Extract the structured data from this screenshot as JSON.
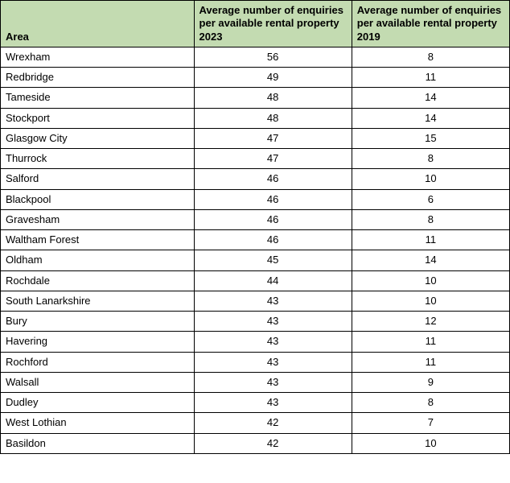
{
  "table": {
    "header_bg": "#c3dbb1",
    "border_color": "#000000",
    "font_size": 13,
    "header_font_weight": 700,
    "columns": [
      {
        "key": "area",
        "label": "Area"
      },
      {
        "key": "y2023",
        "label": "Average number of enquiries per available rental property 2023"
      },
      {
        "key": "y2019",
        "label": "Average number of enquiries per available rental property 2019"
      }
    ],
    "rows": [
      {
        "area": "Wrexham",
        "y2023": 56,
        "y2019": 8
      },
      {
        "area": "Redbridge",
        "y2023": 49,
        "y2019": 11
      },
      {
        "area": "Tameside",
        "y2023": 48,
        "y2019": 14
      },
      {
        "area": "Stockport",
        "y2023": 48,
        "y2019": 14
      },
      {
        "area": "Glasgow City",
        "y2023": 47,
        "y2019": 15
      },
      {
        "area": "Thurrock",
        "y2023": 47,
        "y2019": 8
      },
      {
        "area": "Salford",
        "y2023": 46,
        "y2019": 10
      },
      {
        "area": "Blackpool",
        "y2023": 46,
        "y2019": 6
      },
      {
        "area": "Gravesham",
        "y2023": 46,
        "y2019": 8
      },
      {
        "area": "Waltham Forest",
        "y2023": 46,
        "y2019": 11
      },
      {
        "area": "Oldham",
        "y2023": 45,
        "y2019": 14
      },
      {
        "area": "Rochdale",
        "y2023": 44,
        "y2019": 10
      },
      {
        "area": "South Lanarkshire",
        "y2023": 43,
        "y2019": 10
      },
      {
        "area": "Bury",
        "y2023": 43,
        "y2019": 12
      },
      {
        "area": "Havering",
        "y2023": 43,
        "y2019": 11
      },
      {
        "area": "Rochford",
        "y2023": 43,
        "y2019": 11
      },
      {
        "area": "Walsall",
        "y2023": 43,
        "y2019": 9
      },
      {
        "area": "Dudley",
        "y2023": 43,
        "y2019": 8
      },
      {
        "area": "West Lothian",
        "y2023": 42,
        "y2019": 7
      },
      {
        "area": "Basildon",
        "y2023": 42,
        "y2019": 10
      }
    ]
  }
}
